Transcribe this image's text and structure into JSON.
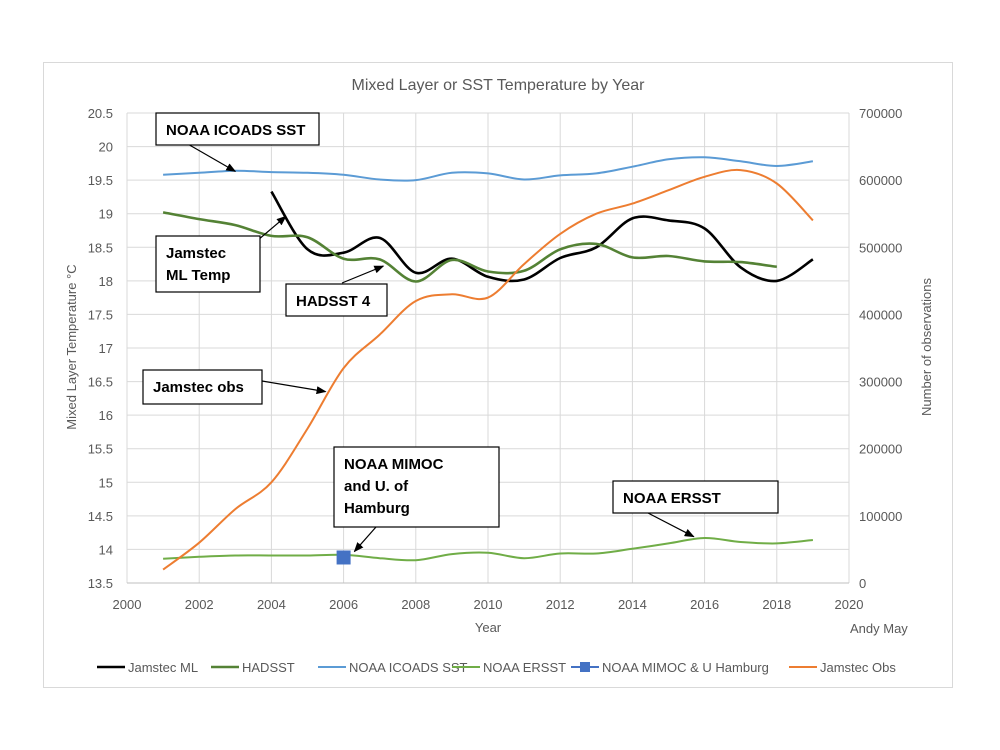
{
  "chart_data": {
    "type": "line",
    "title": "Mixed Layer or SST Temperature by Year",
    "xlabel": "Year",
    "ylabel": "Mixed Layer Temperature °C",
    "y2label": "Number of observations",
    "credit": "Andy May",
    "xlim": [
      2000,
      2020
    ],
    "ylim": [
      13.5,
      20.5
    ],
    "y2lim": [
      0,
      700000
    ],
    "x_ticks": [
      2000,
      2002,
      2004,
      2006,
      2008,
      2010,
      2012,
      2014,
      2016,
      2018,
      2020
    ],
    "y_ticks": [
      "13.5",
      "14",
      "14.5",
      "15",
      "15.5",
      "16",
      "16.5",
      "17",
      "17.5",
      "18",
      "18.5",
      "19",
      "19.5",
      "20",
      "20.5"
    ],
    "y2_ticks": [
      "0",
      "100000",
      "200000",
      "300000",
      "400000",
      "500000",
      "600000",
      "700000"
    ],
    "grid": true,
    "legend_position": "bottom",
    "series": [
      {
        "name": "Jamstec ML",
        "color": "#000000",
        "axis": "left",
        "marker": "none",
        "x": [
          2004,
          2005,
          2006,
          2007,
          2008,
          2009,
          2010,
          2011,
          2012,
          2013,
          2014,
          2015,
          2016,
          2017,
          2018,
          2019
        ],
        "values": [
          19.33,
          18.47,
          18.42,
          18.64,
          18.12,
          18.33,
          18.06,
          18.02,
          18.34,
          18.5,
          18.93,
          18.9,
          18.78,
          18.2,
          18.0,
          18.32
        ]
      },
      {
        "name": "HADSST",
        "color": "#548235",
        "axis": "left",
        "marker": "none",
        "x": [
          2001,
          2002,
          2003,
          2004,
          2005,
          2006,
          2007,
          2008,
          2009,
          2010,
          2011,
          2012,
          2013,
          2014,
          2015,
          2016,
          2017,
          2018
        ],
        "values": [
          19.02,
          18.92,
          18.83,
          18.67,
          18.65,
          18.33,
          18.32,
          17.99,
          18.31,
          18.14,
          18.15,
          18.47,
          18.55,
          18.35,
          18.37,
          18.29,
          18.28,
          18.21
        ]
      },
      {
        "name": "NOAA ICOADS SST",
        "color": "#5b9bd5",
        "axis": "left",
        "marker": "none",
        "x": [
          2001,
          2002,
          2003,
          2004,
          2005,
          2006,
          2007,
          2008,
          2009,
          2010,
          2011,
          2012,
          2013,
          2014,
          2015,
          2016,
          2017,
          2018,
          2019
        ],
        "values": [
          19.58,
          19.61,
          19.64,
          19.62,
          19.61,
          19.58,
          19.51,
          19.5,
          19.61,
          19.6,
          19.51,
          19.57,
          19.6,
          19.7,
          19.81,
          19.84,
          19.78,
          19.71,
          19.78
        ]
      },
      {
        "name": "NOAA ERSST",
        "color": "#70ad47",
        "axis": "left",
        "marker": "none",
        "x": [
          2001,
          2002,
          2003,
          2004,
          2005,
          2006,
          2007,
          2008,
          2009,
          2010,
          2011,
          2012,
          2013,
          2014,
          2015,
          2016,
          2017,
          2018,
          2019
        ],
        "values": [
          13.86,
          13.89,
          13.91,
          13.91,
          13.91,
          13.92,
          13.87,
          13.84,
          13.93,
          13.95,
          13.87,
          13.94,
          13.94,
          14.01,
          14.09,
          14.17,
          14.11,
          14.09,
          14.14
        ]
      },
      {
        "name": "NOAA MIMOC & U Hamburg",
        "color": "#4472c4",
        "axis": "left",
        "marker": "square",
        "x": [
          2006
        ],
        "values": [
          13.88
        ]
      },
      {
        "name": "Jamstec Obs",
        "color": "#ed7d31",
        "axis": "right",
        "marker": "none",
        "x": [
          2001,
          2002,
          2003,
          2004,
          2005,
          2006,
          2007,
          2008,
          2009,
          2010,
          2011,
          2012,
          2013,
          2014,
          2015,
          2016,
          2017,
          2018,
          2019
        ],
        "values": [
          20000,
          60000,
          110000,
          150000,
          230000,
          320000,
          370000,
          420000,
          430000,
          425000,
          475000,
          520000,
          550000,
          565000,
          585000,
          605000,
          615000,
          595000,
          540000
        ]
      }
    ],
    "annotations": [
      {
        "id": "icoads",
        "lines": [
          "NOAA ICOADS SST"
        ],
        "target_series": "NOAA ICOADS SST"
      },
      {
        "id": "jml",
        "lines": [
          "Jamstec",
          "ML Temp"
        ],
        "target_series": "Jamstec ML"
      },
      {
        "id": "hadsst",
        "lines": [
          "HADSST 4"
        ],
        "target_series": "HADSST"
      },
      {
        "id": "jobs",
        "lines": [
          "Jamstec obs"
        ],
        "target_series": "Jamstec Obs"
      },
      {
        "id": "mimoc",
        "lines": [
          "NOAA MIMOC",
          "and U. of",
          "Hamburg"
        ],
        "target_series": "NOAA MIMOC & U Hamburg"
      },
      {
        "id": "ersst",
        "lines": [
          "NOAA ERSST"
        ],
        "target_series": "NOAA ERSST"
      }
    ]
  }
}
